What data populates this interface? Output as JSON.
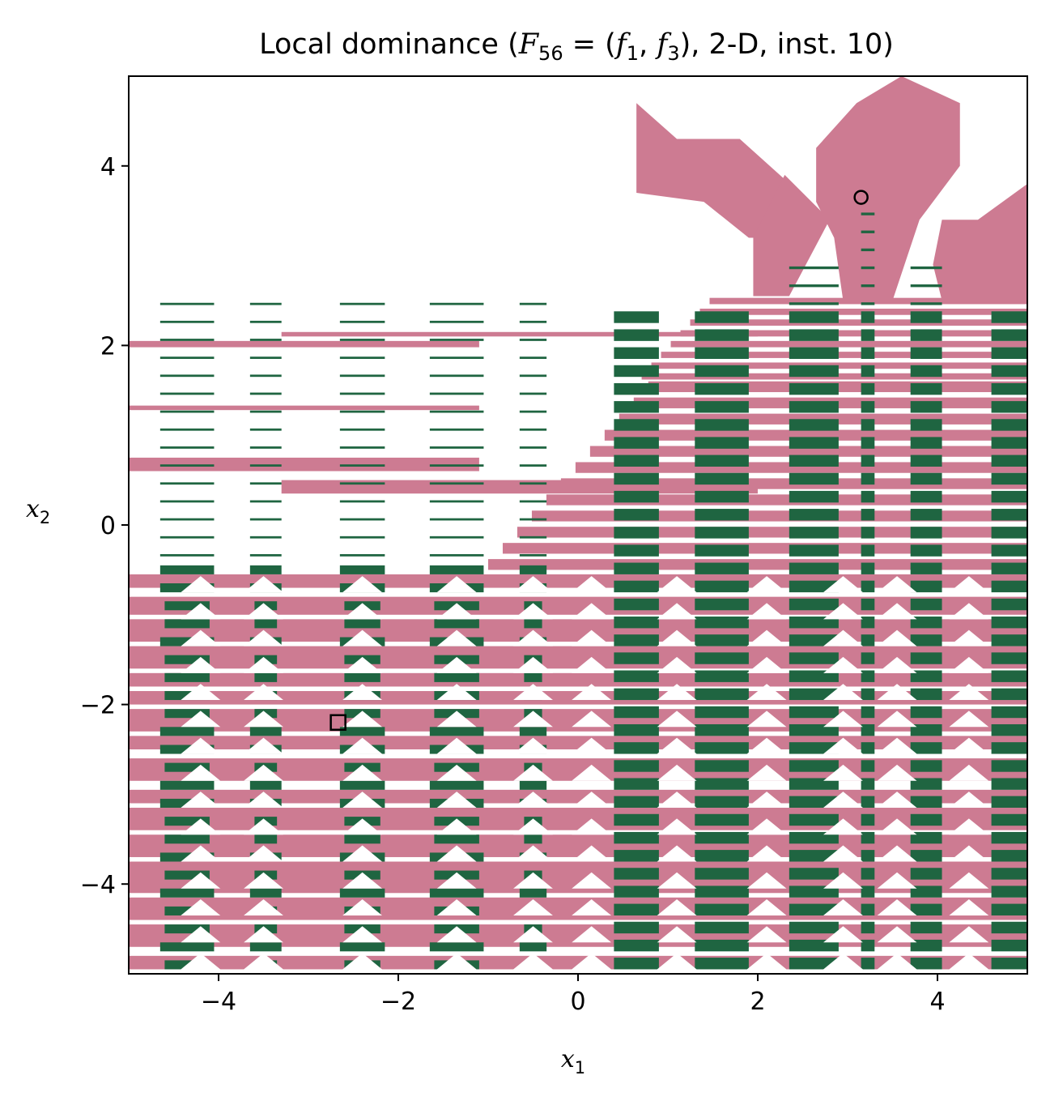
{
  "chart_data": {
    "type": "heatmap",
    "title_parts": {
      "prefix": "Local dominance (",
      "F": "F",
      "F_sub": "56",
      "eq": " = (",
      "f1": "f",
      "f1_sub": "1",
      "comma": ", ",
      "f3": "f",
      "f3_sub": "3",
      "suffix": "), 2-D, inst. 10)"
    },
    "xlabel": {
      "var": "x",
      "sub": "1"
    },
    "ylabel": {
      "var": "x",
      "sub": "2"
    },
    "xlim": [
      -5,
      5
    ],
    "ylim": [
      -5,
      5
    ],
    "xticks": [
      -4,
      -2,
      0,
      2,
      4
    ],
    "yticks": [
      -4,
      -2,
      0,
      2,
      4
    ],
    "xtick_labels": [
      "−4",
      "−2",
      "0",
      "2",
      "4"
    ],
    "ytick_labels": [
      "−4",
      "−2",
      "0",
      "2",
      "4"
    ],
    "colors": {
      "pink_region": "#cd7b92",
      "green_region": "#1f6541",
      "background": "#ffffff",
      "marker": "#000000"
    },
    "markers": [
      {
        "shape": "circle",
        "x": 3.15,
        "y": 3.65
      },
      {
        "shape": "square",
        "x": -2.67,
        "y": -2.2
      }
    ],
    "region_layout": {
      "green_columns": [
        [
          -4.65,
          -4.05
        ],
        [
          -3.65,
          -3.3
        ],
        [
          -2.65,
          -2.15
        ],
        [
          -1.65,
          -1.05
        ],
        [
          -0.65,
          -0.35
        ],
        [
          0.4,
          0.9
        ],
        [
          1.3,
          1.9
        ],
        [
          2.35,
          2.9
        ],
        [
          3.15,
          3.3
        ],
        [
          3.7,
          4.05
        ],
        [
          4.6,
          5.0
        ]
      ],
      "pink_bands_full": [
        [
          -4.95,
          -4.8
        ],
        [
          -4.7,
          -4.45
        ],
        [
          -4.4,
          -4.15
        ],
        [
          -4.1,
          -3.75
        ],
        [
          -3.7,
          -3.45
        ],
        [
          -3.4,
          -3.15
        ],
        [
          -3.1,
          -2.95
        ],
        [
          -2.85,
          -2.6
        ],
        [
          -2.5,
          -2.35
        ],
        [
          -2.3,
          -2.05
        ],
        [
          -2.0,
          -1.85
        ],
        [
          -1.8,
          -1.65
        ],
        [
          -1.6,
          -1.35
        ],
        [
          -1.3,
          -1.05
        ],
        [
          -1.0,
          -0.8
        ],
        [
          -0.7,
          -0.55
        ]
      ],
      "upper_pink_blobs": [
        {
          "x": [
            0.65,
            1.9
          ],
          "y": [
            3.5,
            4.7
          ]
        },
        {
          "x": [
            2.65,
            4.3
          ],
          "y": [
            3.3,
            5.0
          ]
        },
        {
          "x": [
            4.05,
            5.0
          ],
          "y": [
            2.5,
            3.8
          ]
        },
        {
          "x": [
            2.6,
            3.9
          ],
          "y": [
            2.3,
            3.6
          ]
        }
      ]
    }
  }
}
